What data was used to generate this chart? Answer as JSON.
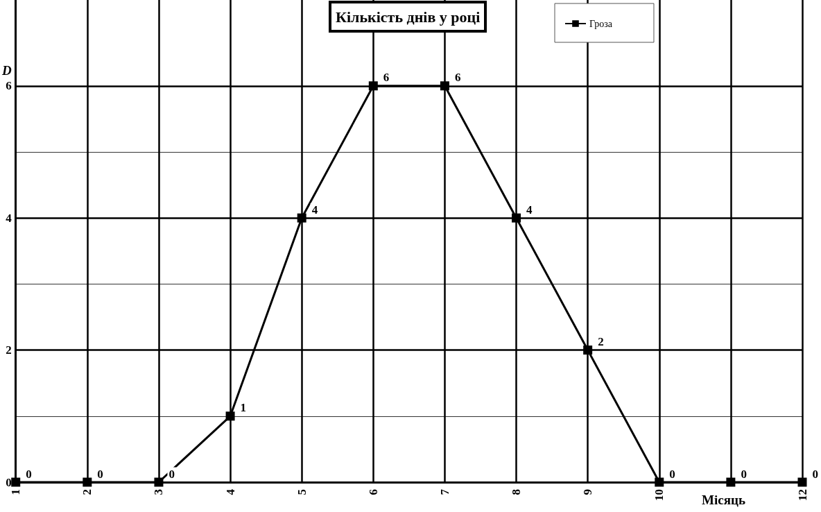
{
  "chart_data": {
    "type": "line",
    "title": "Кількість днів у році",
    "xlabel": "Місяць",
    "ylabel": "D",
    "x": [
      1,
      2,
      3,
      4,
      5,
      6,
      7,
      8,
      9,
      10,
      11,
      12
    ],
    "series": [
      {
        "name": "Гроза",
        "color": "#000000",
        "values": [
          0,
          0,
          0,
          1,
          4,
          6,
          6,
          4,
          2,
          0,
          0,
          0
        ]
      }
    ],
    "xlim": [
      1,
      12
    ],
    "xticks": [
      1,
      2,
      3,
      4,
      5,
      6,
      7,
      8,
      9,
      10,
      {
        "value": 11,
        "label": null
      },
      12
    ],
    "ylim": [
      0,
      7.3
    ],
    "yticks": [
      0,
      {
        "value": 1,
        "label": null
      },
      2,
      {
        "value": 3,
        "label": null
      },
      4,
      {
        "value": 5,
        "label": null
      },
      6
    ],
    "grid": true,
    "legend": "top right",
    "marker": "square",
    "line_style": "solid",
    "data_labels": true
  }
}
